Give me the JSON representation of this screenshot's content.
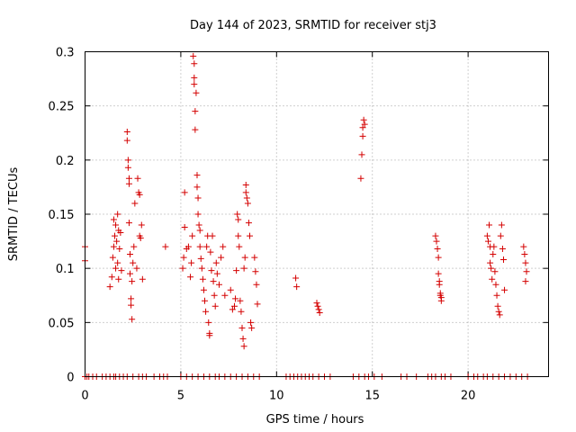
{
  "chart_data": {
    "type": "scatter",
    "title": "Day 144 of 2023, SRMTID for receiver stj3",
    "xlabel": "GPS time / hours",
    "ylabel": "SRMTID / TECUs",
    "xlim": [
      0,
      24.2
    ],
    "ylim": [
      0,
      0.3
    ],
    "x_ticks": [
      0,
      5,
      10,
      15,
      20
    ],
    "x_tick_labels": [
      "0",
      "5",
      "10",
      "15",
      "20"
    ],
    "y_ticks": [
      0,
      0.05,
      0.1,
      0.15,
      0.2,
      0.25,
      0.3
    ],
    "y_tick_labels": [
      "0",
      "0.05",
      "0.1",
      "0.15",
      "0.2",
      "0.25",
      "0.3"
    ],
    "grid": true,
    "marker": "+",
    "color": "#d40000",
    "series": [
      {
        "points": [
          [
            0.0,
            0.12
          ],
          [
            0.0,
            0.107
          ],
          [
            1.3,
            0.083
          ],
          [
            1.4,
            0.092
          ],
          [
            1.45,
            0.11
          ],
          [
            1.5,
            0.12
          ],
          [
            1.5,
            0.145
          ],
          [
            1.55,
            0.13
          ],
          [
            1.6,
            0.1
          ],
          [
            1.6,
            0.14
          ],
          [
            1.65,
            0.125
          ],
          [
            1.7,
            0.15
          ],
          [
            1.7,
            0.105
          ],
          [
            1.75,
            0.09
          ],
          [
            1.75,
            0.135
          ],
          [
            1.8,
            0.118
          ],
          [
            1.85,
            0.133
          ],
          [
            1.9,
            0.098
          ],
          [
            2.2,
            0.226
          ],
          [
            2.2,
            0.218
          ],
          [
            2.25,
            0.2
          ],
          [
            2.25,
            0.193
          ],
          [
            2.3,
            0.183
          ],
          [
            2.3,
            0.178
          ],
          [
            2.3,
            0.142
          ],
          [
            2.35,
            0.113
          ],
          [
            2.35,
            0.095
          ],
          [
            2.4,
            0.072
          ],
          [
            2.4,
            0.066
          ],
          [
            2.45,
            0.053
          ],
          [
            2.45,
            0.088
          ],
          [
            2.5,
            0.105
          ],
          [
            2.55,
            0.12
          ],
          [
            2.6,
            0.16
          ],
          [
            2.7,
            0.1
          ],
          [
            2.75,
            0.183
          ],
          [
            2.8,
            0.17
          ],
          [
            2.85,
            0.168
          ],
          [
            2.85,
            0.13
          ],
          [
            2.9,
            0.128
          ],
          [
            2.95,
            0.14
          ],
          [
            3.0,
            0.09
          ],
          [
            4.2,
            0.12
          ],
          [
            5.1,
            0.1
          ],
          [
            5.15,
            0.11
          ],
          [
            5.2,
            0.138
          ],
          [
            5.2,
            0.17
          ],
          [
            5.3,
            0.118
          ],
          [
            5.4,
            0.12
          ],
          [
            5.5,
            0.092
          ],
          [
            5.55,
            0.105
          ],
          [
            5.6,
            0.13
          ],
          [
            5.65,
            0.296
          ],
          [
            5.7,
            0.289
          ],
          [
            5.7,
            0.276
          ],
          [
            5.7,
            0.27
          ],
          [
            5.75,
            0.245
          ],
          [
            5.75,
            0.228
          ],
          [
            5.8,
            0.262
          ],
          [
            5.85,
            0.186
          ],
          [
            5.85,
            0.175
          ],
          [
            5.9,
            0.165
          ],
          [
            5.9,
            0.15
          ],
          [
            5.95,
            0.14
          ],
          [
            6.0,
            0.135
          ],
          [
            6.0,
            0.12
          ],
          [
            6.05,
            0.109
          ],
          [
            6.1,
            0.1
          ],
          [
            6.15,
            0.09
          ],
          [
            6.2,
            0.08
          ],
          [
            6.25,
            0.07
          ],
          [
            6.3,
            0.06
          ],
          [
            6.35,
            0.12
          ],
          [
            6.4,
            0.13
          ],
          [
            6.45,
            0.05
          ],
          [
            6.5,
            0.04
          ],
          [
            6.5,
            0.038
          ],
          [
            6.55,
            0.115
          ],
          [
            6.6,
            0.098
          ],
          [
            6.65,
            0.13
          ],
          [
            6.7,
            0.088
          ],
          [
            6.75,
            0.075
          ],
          [
            6.8,
            0.065
          ],
          [
            6.85,
            0.105
          ],
          [
            6.9,
            0.095
          ],
          [
            7.0,
            0.085
          ],
          [
            7.1,
            0.11
          ],
          [
            7.2,
            0.12
          ],
          [
            7.3,
            0.075
          ],
          [
            7.6,
            0.08
          ],
          [
            7.7,
            0.062
          ],
          [
            7.8,
            0.065
          ],
          [
            7.85,
            0.072
          ],
          [
            7.9,
            0.098
          ],
          [
            7.95,
            0.15
          ],
          [
            8.0,
            0.145
          ],
          [
            8.0,
            0.13
          ],
          [
            8.05,
            0.12
          ],
          [
            8.1,
            0.07
          ],
          [
            8.15,
            0.06
          ],
          [
            8.2,
            0.045
          ],
          [
            8.25,
            0.035
          ],
          [
            8.3,
            0.028
          ],
          [
            8.3,
            0.1
          ],
          [
            8.35,
            0.11
          ],
          [
            8.4,
            0.177
          ],
          [
            8.4,
            0.17
          ],
          [
            8.45,
            0.165
          ],
          [
            8.5,
            0.16
          ],
          [
            8.55,
            0.142
          ],
          [
            8.6,
            0.13
          ],
          [
            8.65,
            0.05
          ],
          [
            8.7,
            0.045
          ],
          [
            8.85,
            0.11
          ],
          [
            8.9,
            0.097
          ],
          [
            8.95,
            0.085
          ],
          [
            9.0,
            0.067
          ],
          [
            11.0,
            0.091
          ],
          [
            11.05,
            0.083
          ],
          [
            12.1,
            0.068
          ],
          [
            12.15,
            0.065
          ],
          [
            12.2,
            0.062
          ],
          [
            12.25,
            0.059
          ],
          [
            14.4,
            0.183
          ],
          [
            14.45,
            0.205
          ],
          [
            14.5,
            0.222
          ],
          [
            14.5,
            0.23
          ],
          [
            14.55,
            0.237
          ],
          [
            14.6,
            0.233
          ],
          [
            18.3,
            0.13
          ],
          [
            18.35,
            0.125
          ],
          [
            18.4,
            0.118
          ],
          [
            18.45,
            0.11
          ],
          [
            18.45,
            0.095
          ],
          [
            18.5,
            0.088
          ],
          [
            18.5,
            0.085
          ],
          [
            18.55,
            0.077
          ],
          [
            18.55,
            0.075
          ],
          [
            18.6,
            0.07
          ],
          [
            18.6,
            0.073
          ],
          [
            21.0,
            0.13
          ],
          [
            21.05,
            0.125
          ],
          [
            21.1,
            0.14
          ],
          [
            21.15,
            0.12
          ],
          [
            21.15,
            0.105
          ],
          [
            21.2,
            0.1
          ],
          [
            21.25,
            0.09
          ],
          [
            21.3,
            0.113
          ],
          [
            21.35,
            0.12
          ],
          [
            21.4,
            0.097
          ],
          [
            21.45,
            0.085
          ],
          [
            21.5,
            0.075
          ],
          [
            21.55,
            0.065
          ],
          [
            21.6,
            0.06
          ],
          [
            21.65,
            0.057
          ],
          [
            21.7,
            0.13
          ],
          [
            21.75,
            0.14
          ],
          [
            21.8,
            0.118
          ],
          [
            21.85,
            0.108
          ],
          [
            21.9,
            0.08
          ],
          [
            22.9,
            0.12
          ],
          [
            22.95,
            0.113
          ],
          [
            23.0,
            0.105
          ],
          [
            23.0,
            0.088
          ],
          [
            23.05,
            0.097
          ]
        ],
        "zero_x": [
          0.0,
          0.1,
          0.2,
          0.4,
          0.6,
          0.9,
          1.1,
          1.3,
          1.5,
          1.6,
          1.8,
          2.0,
          2.2,
          2.5,
          2.8,
          3.0,
          3.2,
          3.6,
          3.9,
          4.1,
          4.3,
          5.0,
          5.3,
          5.6,
          5.9,
          6.2,
          6.5,
          6.8,
          7.0,
          7.3,
          7.6,
          7.9,
          8.2,
          8.5,
          8.8,
          9.1,
          10.5,
          10.7,
          10.9,
          11.1,
          11.3,
          11.5,
          11.7,
          11.9,
          12.2,
          12.5,
          12.8,
          14.0,
          14.3,
          14.6,
          14.8,
          15.1,
          15.5,
          16.5,
          16.8,
          17.3,
          17.9,
          18.1,
          18.3,
          18.6,
          18.8,
          19.1,
          20.0,
          20.3,
          20.5,
          20.8,
          21.0,
          21.3,
          21.6,
          21.9,
          22.2,
          22.5,
          22.8,
          23.1
        ]
      }
    ]
  }
}
